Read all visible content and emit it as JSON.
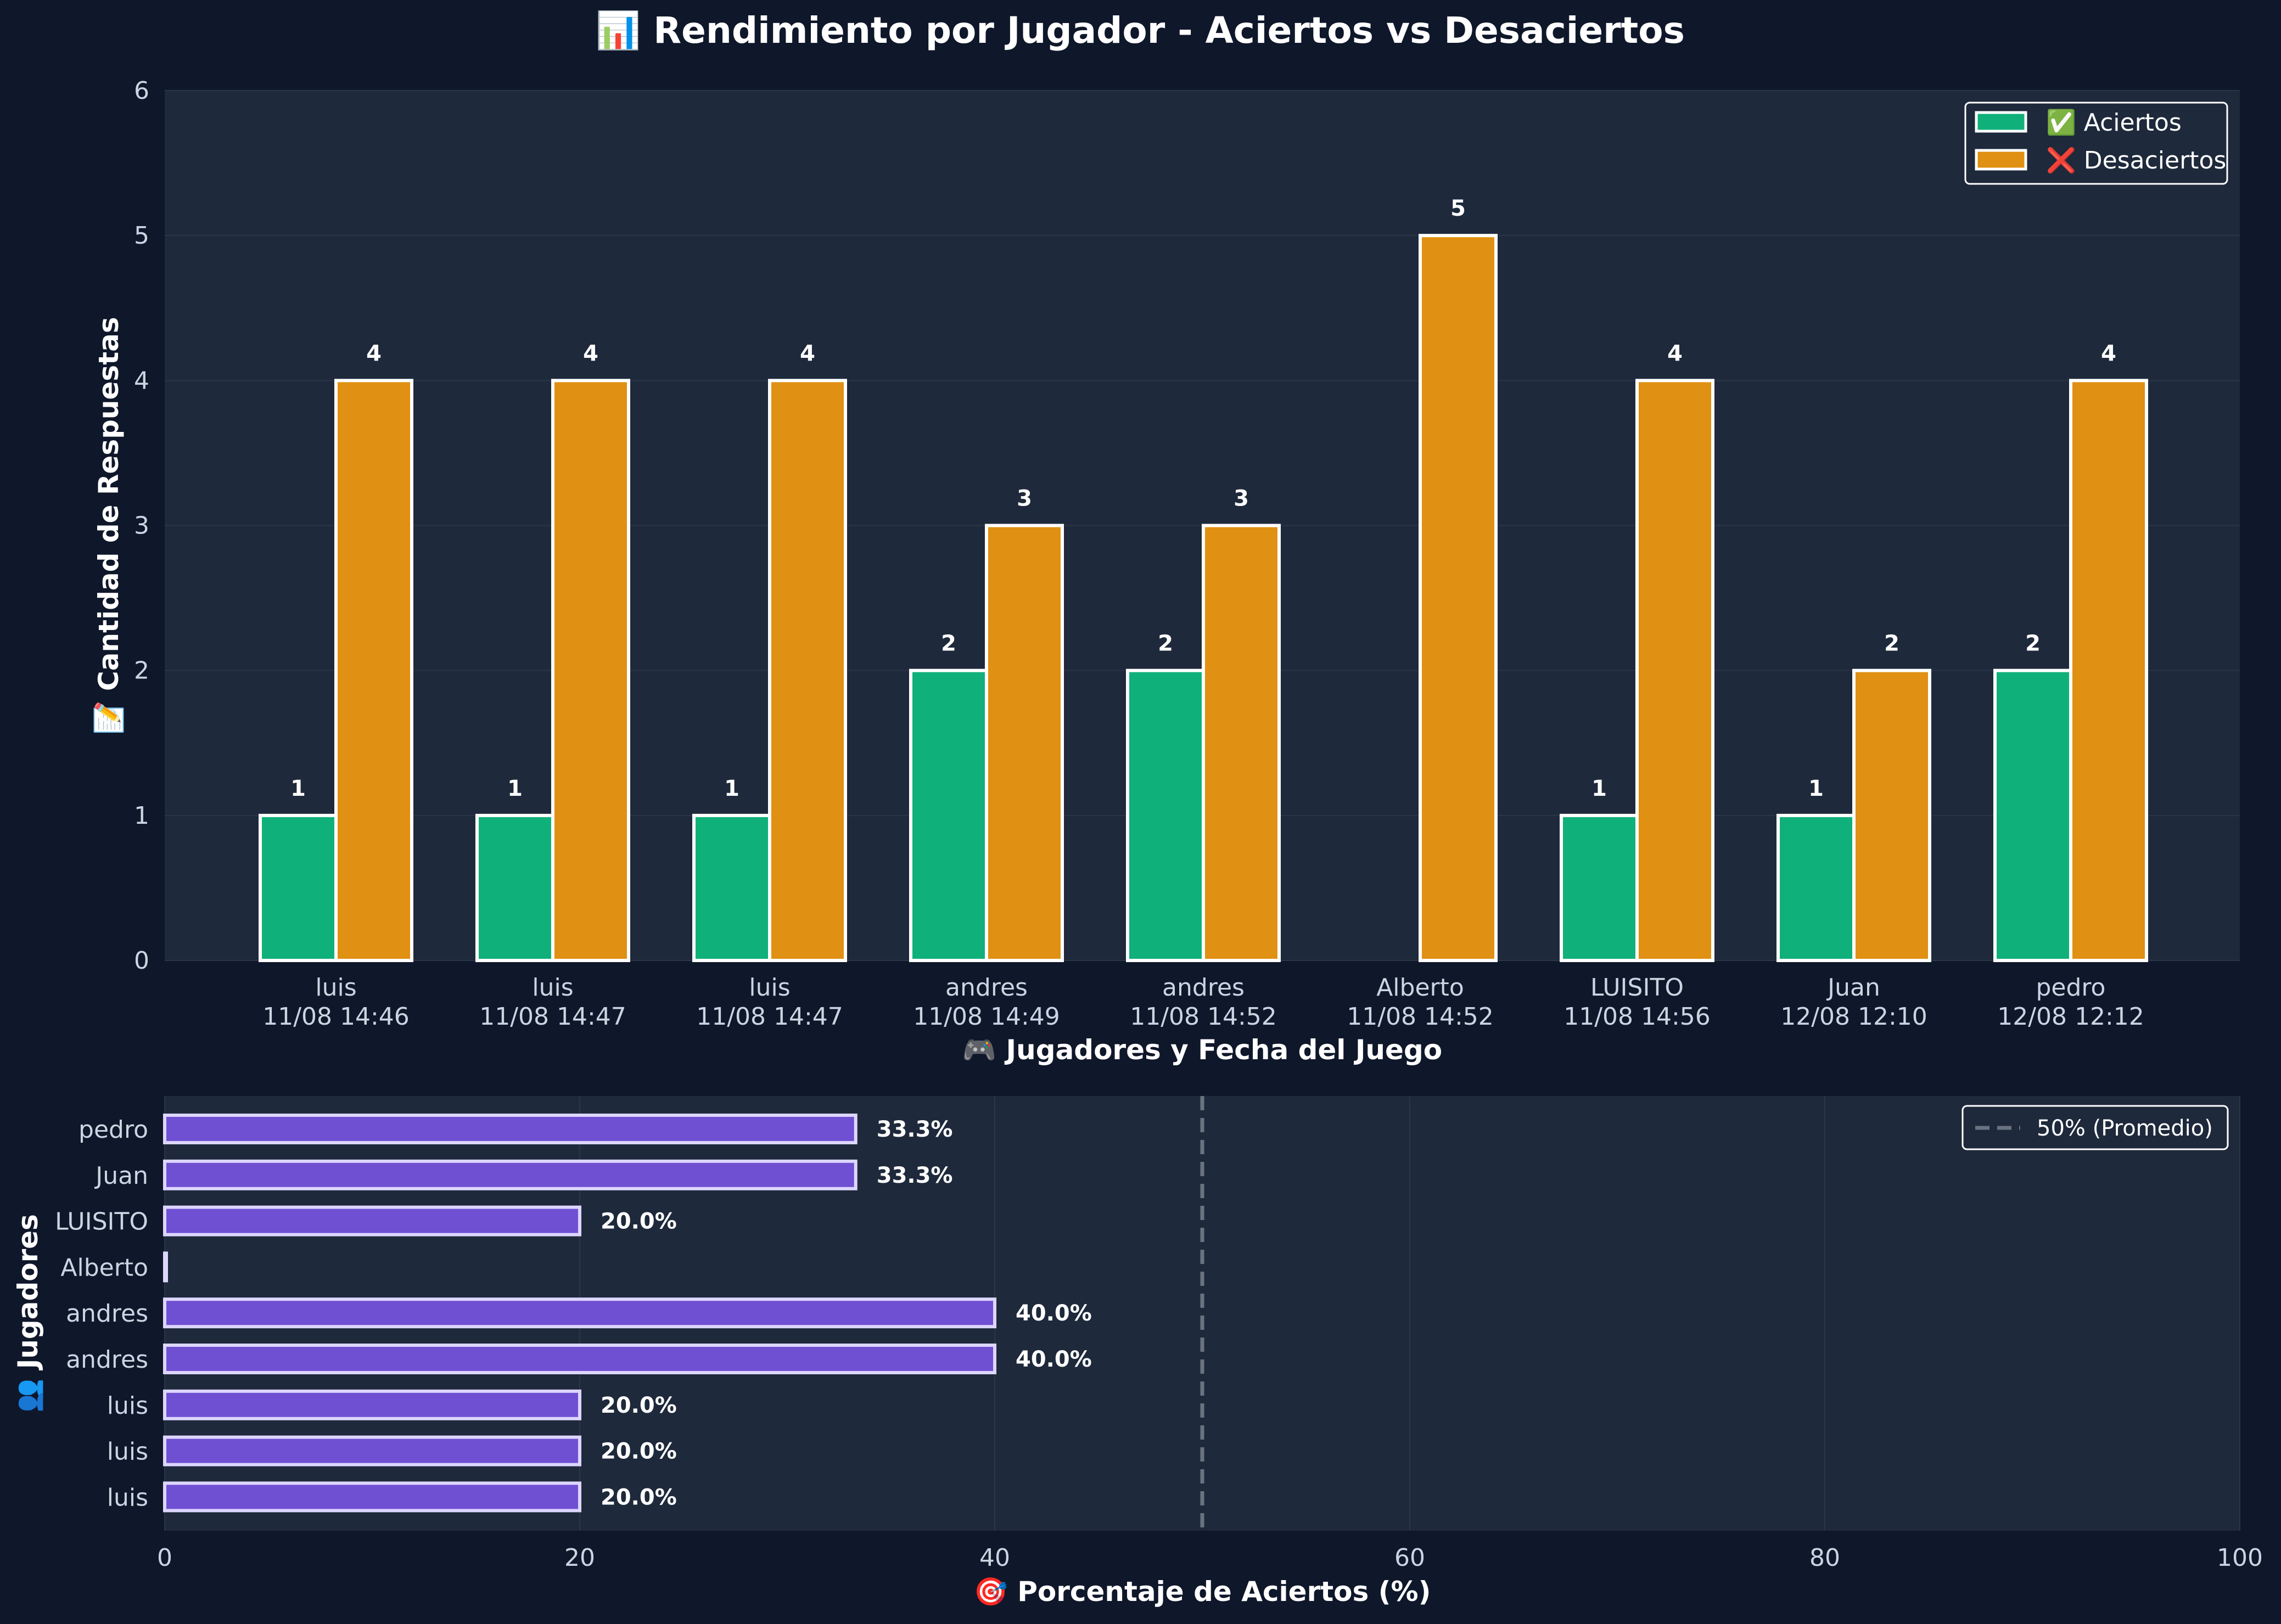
{
  "colors": {
    "background": "#0f172a",
    "panel": "#1e293b",
    "text": "#ffffff",
    "tick_text": "#cbd5e1",
    "aciertos": "#10b07b",
    "desaciertos": "#e09012",
    "percent_bar": "#6f50d2",
    "bar_edge": "#ffffff",
    "percent_edge": "#ddd6fe",
    "reference_line": "#6b7280",
    "grid": "#2b3648"
  },
  "chart_data": [
    {
      "type": "bar",
      "title": "📊 Rendimiento por Jugador - Aciertos vs Desaciertos",
      "title_icon": "chart-emoji-glyph",
      "xlabel": "🎮 Jugadores y Fecha del Juego",
      "ylabel": "📝 Cantidad de Respuestas",
      "categories": [
        [
          "luis",
          "11/08 14:46"
        ],
        [
          "luis",
          "11/08 14:47"
        ],
        [
          "luis",
          "11/08 14:47"
        ],
        [
          "andres",
          "11/08 14:49"
        ],
        [
          "andres",
          "11/08 14:52"
        ],
        [
          "Alberto",
          "11/08 14:52"
        ],
        [
          "LUISITO",
          "11/08 14:56"
        ],
        [
          "Juan",
          "12/08 12:10"
        ],
        [
          "pedro",
          "12/08 12:12"
        ]
      ],
      "series": [
        {
          "name": "✅ Aciertos",
          "values": [
            1,
            1,
            1,
            2,
            2,
            0,
            1,
            1,
            2
          ]
        },
        {
          "name": "❌ Desaciertos",
          "values": [
            4,
            4,
            4,
            3,
            3,
            5,
            4,
            2,
            4
          ]
        }
      ],
      "ylim": [
        0,
        6
      ],
      "yticks": [
        0,
        1,
        2,
        3,
        4,
        5,
        6
      ],
      "legend": "top-right",
      "grid": true
    },
    {
      "type": "bar",
      "orientation": "horizontal",
      "xlabel": "🎯 Porcentaje de Aciertos (%)",
      "ylabel": "👥 Jugadores",
      "categories": [
        "pedro",
        "Juan",
        "LUISITO",
        "Alberto",
        "andres",
        "andres",
        "luis",
        "luis",
        "luis"
      ],
      "values": [
        33.3,
        33.3,
        20.0,
        0.0,
        40.0,
        40.0,
        20.0,
        20.0,
        20.0
      ],
      "labels": [
        "33.3%",
        "33.3%",
        "20.0%",
        "",
        "40.0%",
        "40.0%",
        "20.0%",
        "20.0%",
        "20.0%"
      ],
      "xlim": [
        0,
        100
      ],
      "xticks": [
        0,
        20,
        40,
        60,
        80,
        100
      ],
      "reference_line": {
        "value": 50,
        "label": "50% (Promedio)"
      },
      "legend": "top-right",
      "grid": true
    }
  ]
}
